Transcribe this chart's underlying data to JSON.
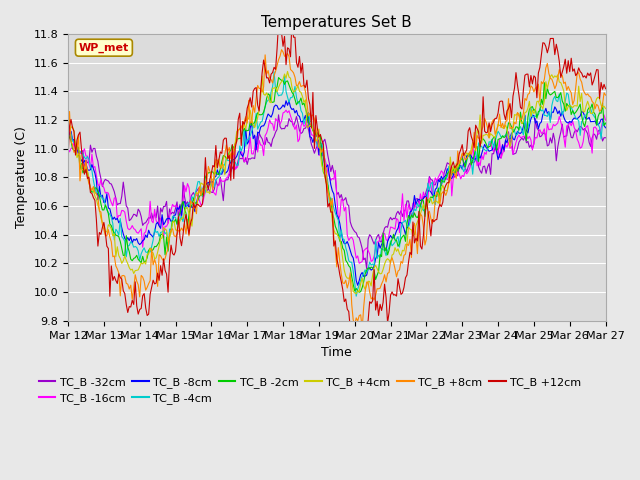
{
  "title": "Temperatures Set B",
  "xlabel": "Time",
  "ylabel": "Temperature (C)",
  "ylim": [
    9.8,
    11.8
  ],
  "xlim": [
    0,
    360
  ],
  "x_tick_labels": [
    "Mar 12",
    "Mar 13",
    "Mar 14",
    "Mar 15",
    "Mar 16",
    "Mar 17",
    "Mar 18",
    "Mar 19",
    "Mar 20",
    "Mar 21",
    "Mar 22",
    "Mar 23",
    "Mar 24",
    "Mar 25",
    "Mar 26",
    "Mar 27"
  ],
  "x_tick_positions": [
    0,
    24,
    48,
    72,
    96,
    120,
    144,
    168,
    192,
    216,
    240,
    264,
    288,
    312,
    336,
    360
  ],
  "series": [
    {
      "label": "TC_B -32cm",
      "color": "#9900cc",
      "lag": 6,
      "amp": 0.7
    },
    {
      "label": "TC_B -16cm",
      "color": "#ff00ff",
      "lag": 4,
      "amp": 0.75
    },
    {
      "label": "TC_B -8cm",
      "color": "#0000ff",
      "lag": 2,
      "amp": 0.85
    },
    {
      "label": "TC_B -4cm",
      "color": "#00cccc",
      "lag": 1,
      "amp": 0.9
    },
    {
      "label": "TC_B -2cm",
      "color": "#00cc00",
      "lag": 0,
      "amp": 0.92
    },
    {
      "label": "TC_B +4cm",
      "color": "#cccc00",
      "lag": 0,
      "amp": 0.95
    },
    {
      "label": "TC_B +8cm",
      "color": "#ff8800",
      "lag": 0,
      "amp": 1.05
    },
    {
      "label": "TC_B +12cm",
      "color": "#cc0000",
      "lag": 0,
      "amp": 1.2
    }
  ],
  "wp_met_label": "WP_met",
  "wp_met_color": "#cc0000",
  "wp_met_bg": "#ffffcc",
  "wp_met_border": "#aa8800",
  "background_color": "#dcdcdc",
  "grid_color": "#ffffff",
  "fig_bg": "#e8e8e8",
  "title_fontsize": 11,
  "legend_fontsize": 8,
  "axis_fontsize": 9,
  "tick_fontsize": 8
}
